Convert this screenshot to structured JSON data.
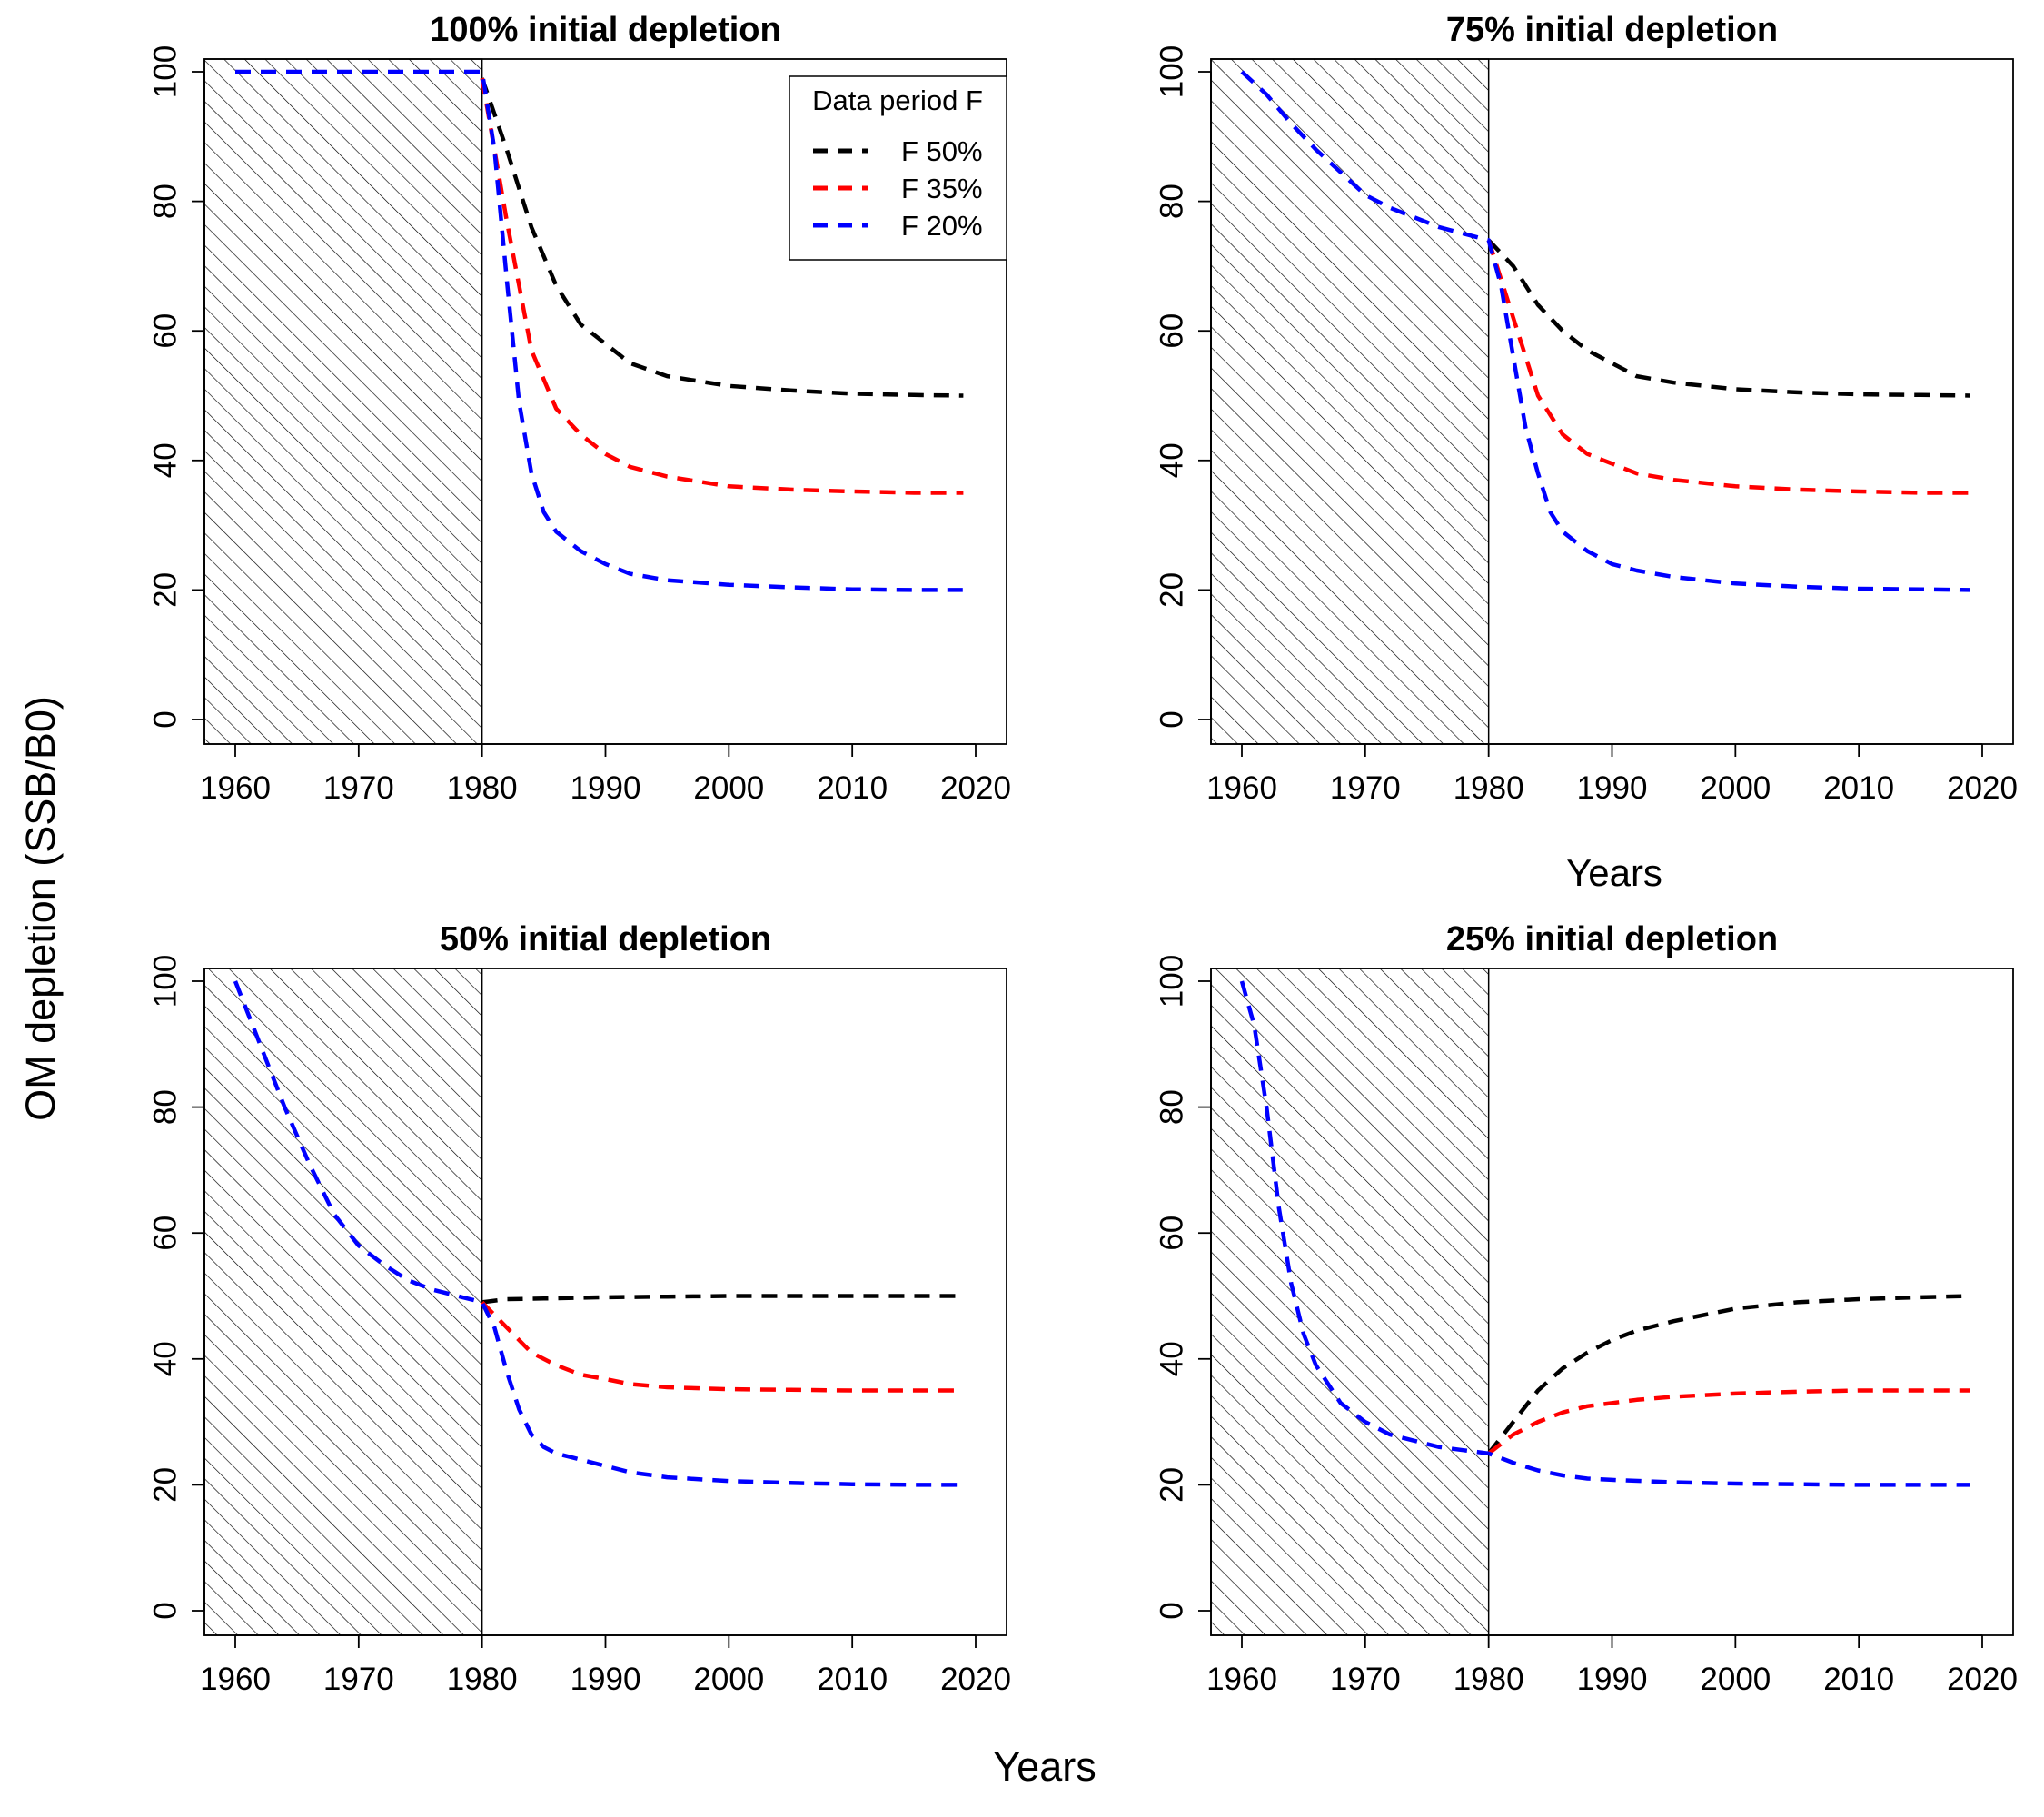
{
  "figure": {
    "ylabel": "OM depletion (SSB/B0)",
    "xlabel": "Years",
    "top_right_xlabel": "Years"
  },
  "legend": {
    "title": "Data period F",
    "entries": [
      {
        "label": "F 50%",
        "color": "#000000"
      },
      {
        "label": "F 35%",
        "color": "#ff0000"
      },
      {
        "label": "F 20%",
        "color": "#0000ff"
      }
    ]
  },
  "chart_data": [
    {
      "type": "line",
      "title": "100% initial depletion",
      "xlim": [
        1960,
        2020
      ],
      "ylim": [
        0,
        100
      ],
      "x_ticks": [
        1960,
        1970,
        1980,
        1990,
        2000,
        2010,
        2020
      ],
      "y_ticks": [
        0,
        20,
        40,
        60,
        80,
        100
      ],
      "shaded_region": {
        "x_from": 1957.5,
        "x_to": 1980,
        "fill": "hatched"
      },
      "series": [
        {
          "name": "F 50%",
          "color": "#000000",
          "x": [
            1980,
            1982,
            1984,
            1986,
            1988,
            1990,
            1992,
            1995,
            2000,
            2005,
            2010,
            2015,
            2019
          ],
          "y": [
            99,
            88,
            76,
            67,
            61,
            58,
            55,
            53,
            51.5,
            50.8,
            50.3,
            50.1,
            50
          ]
        },
        {
          "name": "F 35%",
          "color": "#ff0000",
          "x": [
            1980,
            1982,
            1984,
            1986,
            1988,
            1990,
            1992,
            1995,
            2000,
            2005,
            2010,
            2015,
            2019
          ],
          "y": [
            99,
            77,
            57,
            48,
            44,
            41,
            39,
            37.5,
            36,
            35.5,
            35.2,
            35,
            35
          ]
        },
        {
          "name": "F 20%",
          "color": "#0000ff",
          "x": [
            1960,
            1980,
            1981,
            1982,
            1983,
            1984,
            1985,
            1986,
            1988,
            1990,
            1992,
            1995,
            2000,
            2005,
            2010,
            2015,
            2019
          ],
          "y": [
            100,
            100,
            88,
            68,
            49,
            38,
            32,
            29,
            26,
            24,
            22.5,
            21.5,
            20.8,
            20.4,
            20.1,
            20,
            20
          ]
        }
      ]
    },
    {
      "type": "line",
      "title": "75% initial depletion",
      "xlim": [
        1960,
        2020
      ],
      "ylim": [
        0,
        100
      ],
      "x_ticks": [
        1960,
        1970,
        1980,
        1990,
        2000,
        2010,
        2020
      ],
      "y_ticks": [
        0,
        20,
        40,
        60,
        80,
        100
      ],
      "shaded_region": {
        "x_from": 1957.5,
        "x_to": 1980,
        "fill": "hatched"
      },
      "series": [
        {
          "name": "F 50%",
          "color": "#000000",
          "x": [
            1980,
            1982,
            1984,
            1986,
            1988,
            1990,
            1992,
            1995,
            2000,
            2005,
            2010,
            2015,
            2019
          ],
          "y": [
            74,
            70,
            64,
            60,
            57,
            55,
            53,
            52,
            51,
            50.5,
            50.2,
            50.1,
            50
          ]
        },
        {
          "name": "F 35%",
          "color": "#ff0000",
          "x": [
            1980,
            1982,
            1984,
            1986,
            1988,
            1990,
            1992,
            1995,
            2000,
            2005,
            2010,
            2015,
            2019
          ],
          "y": [
            74,
            62,
            50,
            44,
            41,
            39.5,
            38,
            37,
            36,
            35.5,
            35.2,
            35,
            35
          ]
        },
        {
          "name": "F 20%",
          "color": "#0000ff",
          "x": [
            1960,
            1962,
            1964,
            1966,
            1968,
            1970,
            1972,
            1974,
            1976,
            1978,
            1980,
            1981,
            1982,
            1983,
            1984,
            1985,
            1986,
            1988,
            1990,
            1992,
            1995,
            2000,
            2005,
            2010,
            2015,
            2019
          ],
          "y": [
            100,
            96.5,
            92,
            88,
            84.5,
            81,
            79,
            77.5,
            76,
            75,
            74,
            67,
            56,
            45,
            38,
            32,
            29,
            26,
            24,
            23,
            22,
            21,
            20.5,
            20.2,
            20.1,
            20
          ]
        }
      ]
    },
    {
      "type": "line",
      "title": "50% initial depletion",
      "xlim": [
        1960,
        2020
      ],
      "ylim": [
        0,
        100
      ],
      "x_ticks": [
        1960,
        1970,
        1980,
        1990,
        2000,
        2010,
        2020
      ],
      "y_ticks": [
        0,
        20,
        40,
        60,
        80,
        100
      ],
      "shaded_region": {
        "x_from": 1957.5,
        "x_to": 1980,
        "fill": "hatched"
      },
      "series": [
        {
          "name": "F 50%",
          "color": "#000000",
          "x": [
            1980,
            1982,
            1985,
            1990,
            1995,
            2000,
            2005,
            2010,
            2015,
            2019
          ],
          "y": [
            49,
            49.5,
            49.6,
            49.8,
            49.9,
            50,
            50,
            50,
            50,
            50
          ]
        },
        {
          "name": "F 35%",
          "color": "#ff0000",
          "x": [
            1980,
            1982,
            1984,
            1986,
            1988,
            1990,
            1992,
            1995,
            2000,
            2005,
            2010,
            2015,
            2019
          ],
          "y": [
            49,
            45,
            41,
            39,
            37.5,
            36.8,
            36,
            35.5,
            35.2,
            35.1,
            35,
            35,
            35
          ]
        },
        {
          "name": "F 20%",
          "color": "#0000ff",
          "x": [
            1960,
            1962,
            1964,
            1966,
            1968,
            1970,
            1972,
            1974,
            1976,
            1978,
            1980,
            1981,
            1982,
            1983,
            1984,
            1985,
            1986,
            1988,
            1990,
            1992,
            1995,
            2000,
            2005,
            2010,
            2015,
            2019
          ],
          "y": [
            100,
            90,
            80,
            71,
            63,
            58,
            55,
            52.5,
            51,
            50,
            49,
            45,
            38,
            32,
            28,
            26,
            25,
            24,
            23,
            22,
            21.2,
            20.6,
            20.3,
            20.1,
            20,
            20
          ]
        }
      ]
    },
    {
      "type": "line",
      "title": "25% initial depletion",
      "xlim": [
        1960,
        2020
      ],
      "ylim": [
        0,
        100
      ],
      "x_ticks": [
        1960,
        1970,
        1980,
        1990,
        2000,
        2010,
        2020
      ],
      "y_ticks": [
        0,
        20,
        40,
        60,
        80,
        100
      ],
      "shaded_region": {
        "x_from": 1957.5,
        "x_to": 1980,
        "fill": "hatched"
      },
      "series": [
        {
          "name": "F 50%",
          "color": "#000000",
          "x": [
            1980,
            1982,
            1984,
            1986,
            1988,
            1990,
            1992,
            1995,
            2000,
            2005,
            2010,
            2015,
            2019
          ],
          "y": [
            25,
            30,
            35,
            38.5,
            41,
            43,
            44.5,
            46,
            48,
            49,
            49.5,
            49.8,
            50
          ]
        },
        {
          "name": "F 35%",
          "color": "#ff0000",
          "x": [
            1980,
            1982,
            1984,
            1986,
            1988,
            1990,
            1992,
            1995,
            2000,
            2005,
            2010,
            2015,
            2019
          ],
          "y": [
            25,
            28,
            30,
            31.5,
            32.5,
            33,
            33.5,
            34,
            34.5,
            34.8,
            35,
            35,
            35
          ]
        },
        {
          "name": "F 20%",
          "color": "#0000ff",
          "x": [
            1960,
            1961,
            1962,
            1963,
            1964,
            1965,
            1966,
            1967,
            1968,
            1970,
            1972,
            1974,
            1976,
            1978,
            1980,
            1982,
            1984,
            1986,
            1988,
            1990,
            1995,
            2000,
            2005,
            2010,
            2015,
            2019
          ],
          "y": [
            100,
            93,
            80,
            64,
            52,
            44,
            39,
            36,
            33,
            30,
            28,
            27,
            26,
            25.5,
            25,
            23.5,
            22.3,
            21.5,
            21,
            20.8,
            20.4,
            20.2,
            20.1,
            20,
            20,
            20
          ]
        }
      ]
    }
  ]
}
